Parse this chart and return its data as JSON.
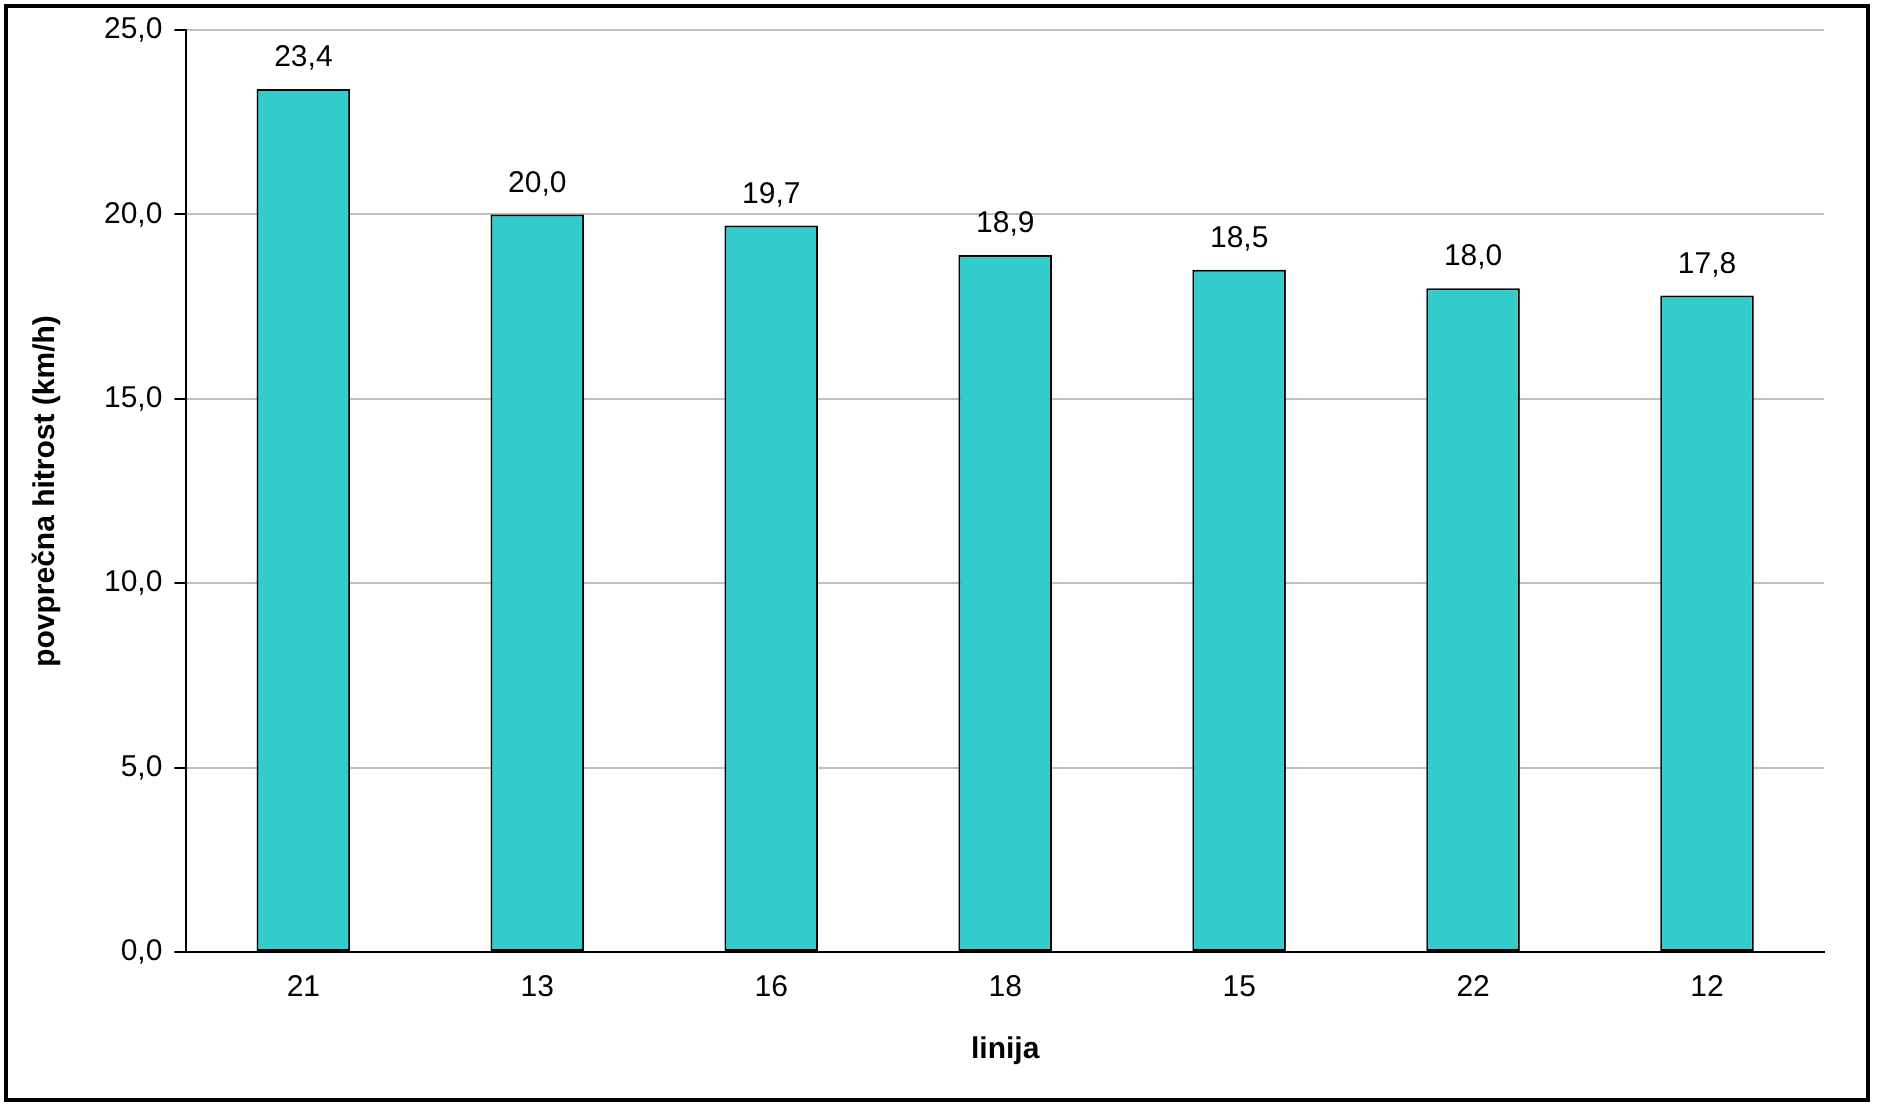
{
  "chart_data": {
    "type": "bar",
    "xlabel": "linija",
    "ylabel": "povprečna hitrost (km/h)",
    "categories": [
      "21",
      "13",
      "16",
      "18",
      "15",
      "22",
      "12"
    ],
    "values": [
      23.4,
      20.0,
      19.7,
      18.9,
      18.5,
      18.0,
      17.8
    ],
    "value_labels": [
      "23,4",
      "20,0",
      "19,7",
      "18,9",
      "18,5",
      "18,0",
      "17,8"
    ],
    "color": "#33cccc",
    "ylim": [
      0,
      25
    ],
    "yticks": [
      {
        "value": 0,
        "label": "0,0"
      },
      {
        "value": 5,
        "label": "5,0"
      },
      {
        "value": 10,
        "label": "10,0"
      },
      {
        "value": 15,
        "label": "15,0"
      },
      {
        "value": 20,
        "label": "20,0"
      },
      {
        "value": 25,
        "label": "25,0"
      }
    ],
    "grid": "y",
    "legend": false
  }
}
